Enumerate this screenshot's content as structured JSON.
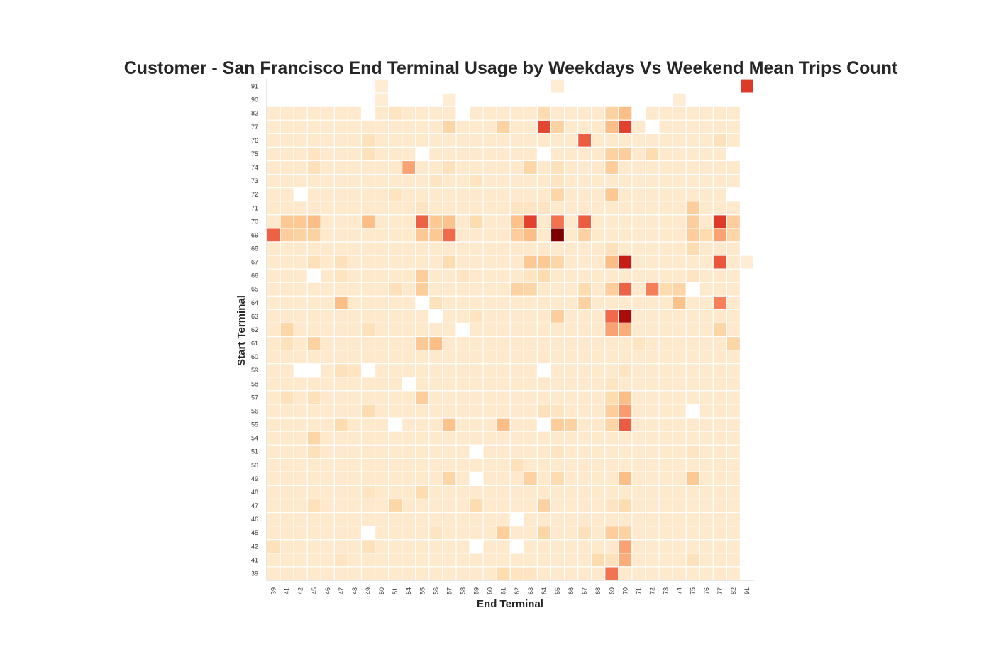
{
  "chart_data": {
    "type": "heatmap",
    "title": "Customer - San Francisco End Terminal Usage by Weekdays Vs Weekend Mean Trips Count",
    "xlabel": "End Terminal",
    "ylabel": "Start Terminal",
    "x_categories": [
      "39",
      "41",
      "42",
      "45",
      "46",
      "47",
      "48",
      "49",
      "50",
      "51",
      "54",
      "55",
      "56",
      "57",
      "58",
      "59",
      "60",
      "61",
      "62",
      "63",
      "64",
      "65",
      "66",
      "67",
      "68",
      "69",
      "70",
      "71",
      "72",
      "73",
      "74",
      "75",
      "76",
      "77",
      "82",
      "91"
    ],
    "y_categories": [
      "91",
      "90",
      "82",
      "77",
      "76",
      "75",
      "74",
      "73",
      "72",
      "71",
      "70",
      "69",
      "68",
      "67",
      "66",
      "65",
      "64",
      "63",
      "62",
      "61",
      "60",
      "59",
      "58",
      "57",
      "56",
      "55",
      "54",
      "51",
      "50",
      "49",
      "48",
      "47",
      "46",
      "45",
      "42",
      "41",
      "39"
    ],
    "colormap": "OrRd",
    "color_low": "#fff7ec",
    "color_high": "#7f0000",
    "value_scale": "relative intensity 0-1",
    "cells": {
      "91": {
        "50": 0.05,
        "65": 0.05,
        "91": 0.72
      },
      "90": {
        "50": 0.05,
        "57": 0.05,
        "74": 0.05
      },
      "82": {
        "51": 0.1,
        "64": 0.15,
        "69": 0.2,
        "70": 0.3
      },
      "77": {
        "57": 0.18,
        "61": 0.2,
        "64": 0.68,
        "65": 0.2,
        "69": 0.3,
        "70": 0.7
      },
      "76": {
        "49": 0.12,
        "67": 0.6,
        "77": 0.12
      },
      "75": {
        "45": 0.1,
        "49": 0.12,
        "69": 0.2,
        "70": 0.22,
        "72": 0.15
      },
      "74": {
        "45": 0.12,
        "54": 0.38,
        "57": 0.12,
        "63": 0.18,
        "65": 0.12,
        "69": 0.22
      },
      "73": {
        "56": 0.1,
        "59": 0.1,
        "65": 0.1
      },
      "72": {
        "51": 0.1,
        "65": 0.18,
        "69": 0.25
      },
      "71": {
        "55": 0.1,
        "62": 0.1,
        "63": 0.1,
        "64": 0.1,
        "75": 0.22
      },
      "70": {
        "41": 0.25,
        "42": 0.25,
        "45": 0.3,
        "49": 0.3,
        "55": 0.58,
        "56": 0.25,
        "57": 0.28,
        "59": 0.15,
        "62": 0.28,
        "63": 0.7,
        "65": 0.52,
        "67": 0.6,
        "75": 0.22,
        "77": 0.72,
        "82": 0.22
      },
      "69": {
        "39": 0.58,
        "41": 0.22,
        "42": 0.2,
        "45": 0.2,
        "55": 0.25,
        "56": 0.25,
        "57": 0.55,
        "62": 0.22,
        "63": 0.3,
        "65": 1.0,
        "67": 0.2,
        "75": 0.22,
        "76": 0.15,
        "77": 0.38,
        "82": 0.18
      },
      "68": {
        "69": 0.12,
        "75": 0.15
      },
      "67": {
        "45": 0.12,
        "47": 0.12,
        "57": 0.15,
        "63": 0.25,
        "64": 0.25,
        "65": 0.18,
        "69": 0.3,
        "70": 0.82,
        "77": 0.62,
        "91": 0.05
      },
      "66": {
        "47": 0.1,
        "55": 0.22,
        "58": 0.1,
        "63": 0.1,
        "64": 0.15,
        "75": 0.1
      },
      "65": {
        "51": 0.12,
        "55": 0.22,
        "62": 0.2,
        "63": 0.18,
        "67": 0.15,
        "69": 0.22,
        "70": 0.58,
        "72": 0.48,
        "73": 0.15,
        "74": 0.18
      },
      "64": {
        "47": 0.3,
        "56": 0.12,
        "67": 0.2,
        "74": 0.28,
        "77": 0.48
      },
      "63": {
        "59": 0.1,
        "65": 0.22,
        "69": 0.55,
        "70": 0.9
      },
      "62": {
        "41": 0.18,
        "49": 0.12,
        "69": 0.38,
        "70": 0.35,
        "77": 0.18
      },
      "61": {
        "41": 0.12,
        "45": 0.2,
        "55": 0.25,
        "56": 0.3,
        "71": 0.1,
        "82": 0.18
      },
      "60": {},
      "59": {
        "47": 0.12,
        "48": 0.1,
        "70": 0.1
      },
      "58": {
        "69": 0.1
      },
      "57": {
        "41": 0.12,
        "45": 0.12,
        "55": 0.22,
        "69": 0.15,
        "70": 0.3
      },
      "56": {
        "49": 0.15,
        "64": 0.12,
        "65": 0.1,
        "69": 0.22,
        "70": 0.4
      },
      "55": {
        "47": 0.15,
        "57": 0.28,
        "61": 0.3,
        "65": 0.22,
        "66": 0.2,
        "69": 0.18,
        "70": 0.6
      },
      "54": {
        "45": 0.18
      },
      "51": {
        "45": 0.12,
        "65": 0.1,
        "75": 0.1
      },
      "50": {
        "62": 0.12
      },
      "49": {
        "57": 0.18,
        "63": 0.2,
        "65": 0.15,
        "70": 0.3,
        "75": 0.25
      },
      "48": {
        "49": 0.1,
        "55": 0.15
      },
      "47": {
        "45": 0.12,
        "51": 0.18,
        "59": 0.15,
        "64": 0.2,
        "69": 0.1,
        "70": 0.15
      },
      "46": {},
      "45": {
        "56": 0.1,
        "61": 0.22,
        "64": 0.18,
        "67": 0.12,
        "69": 0.22,
        "70": 0.2
      },
      "42": {
        "39": 0.12,
        "49": 0.12,
        "70": 0.38
      },
      "41": {
        "47": 0.1,
        "68": 0.15,
        "69": 0.12,
        "70": 0.35,
        "75": 0.12
      },
      "39": {
        "61": 0.15,
        "62": 0.1,
        "63": 0.1,
        "69": 0.52
      }
    },
    "missing": {
      "91": "all_except_listed",
      "90": "all_except_listed",
      "82": [
        "49",
        "58",
        "71",
        "91"
      ],
      "77": [
        "72",
        "91"
      ],
      "76": [
        "91"
      ],
      "75": [
        "55",
        "64",
        "82",
        "91"
      ],
      "74": [
        "91"
      ],
      "73": [
        "91"
      ],
      "72": [
        "42",
        "82",
        "91"
      ],
      "71": [
        "91"
      ],
      "70": [
        "91"
      ],
      "69": [
        "91"
      ],
      "68": [
        "91"
      ],
      "66": [
        "45",
        "91"
      ],
      "65": [
        "75",
        "91"
      ],
      "64": [
        "55",
        "91"
      ],
      "63": [
        "56",
        "91"
      ],
      "62": [
        "58",
        "91"
      ],
      "61": [
        "91"
      ],
      "60": [
        "91"
      ],
      "59": [
        "42",
        "45",
        "49",
        "64",
        "91"
      ],
      "58": [
        "54",
        "91"
      ],
      "57": [
        "91"
      ],
      "56": [
        "75",
        "91"
      ],
      "55": [
        "51",
        "64",
        "91"
      ],
      "54": [
        "91"
      ],
      "51": [
        "59",
        "91"
      ],
      "50": [
        "91"
      ],
      "49": [
        "59",
        "91"
      ],
      "48": [
        "91"
      ],
      "47": [
        "91"
      ],
      "46": [
        "62",
        "91"
      ],
      "45": [
        "49",
        "91"
      ],
      "42": [
        "59",
        "62",
        "91"
      ],
      "41": [
        "91"
      ],
      "39": [
        "91"
      ]
    },
    "default_value": 0.07,
    "grid": false,
    "legend": "none"
  }
}
